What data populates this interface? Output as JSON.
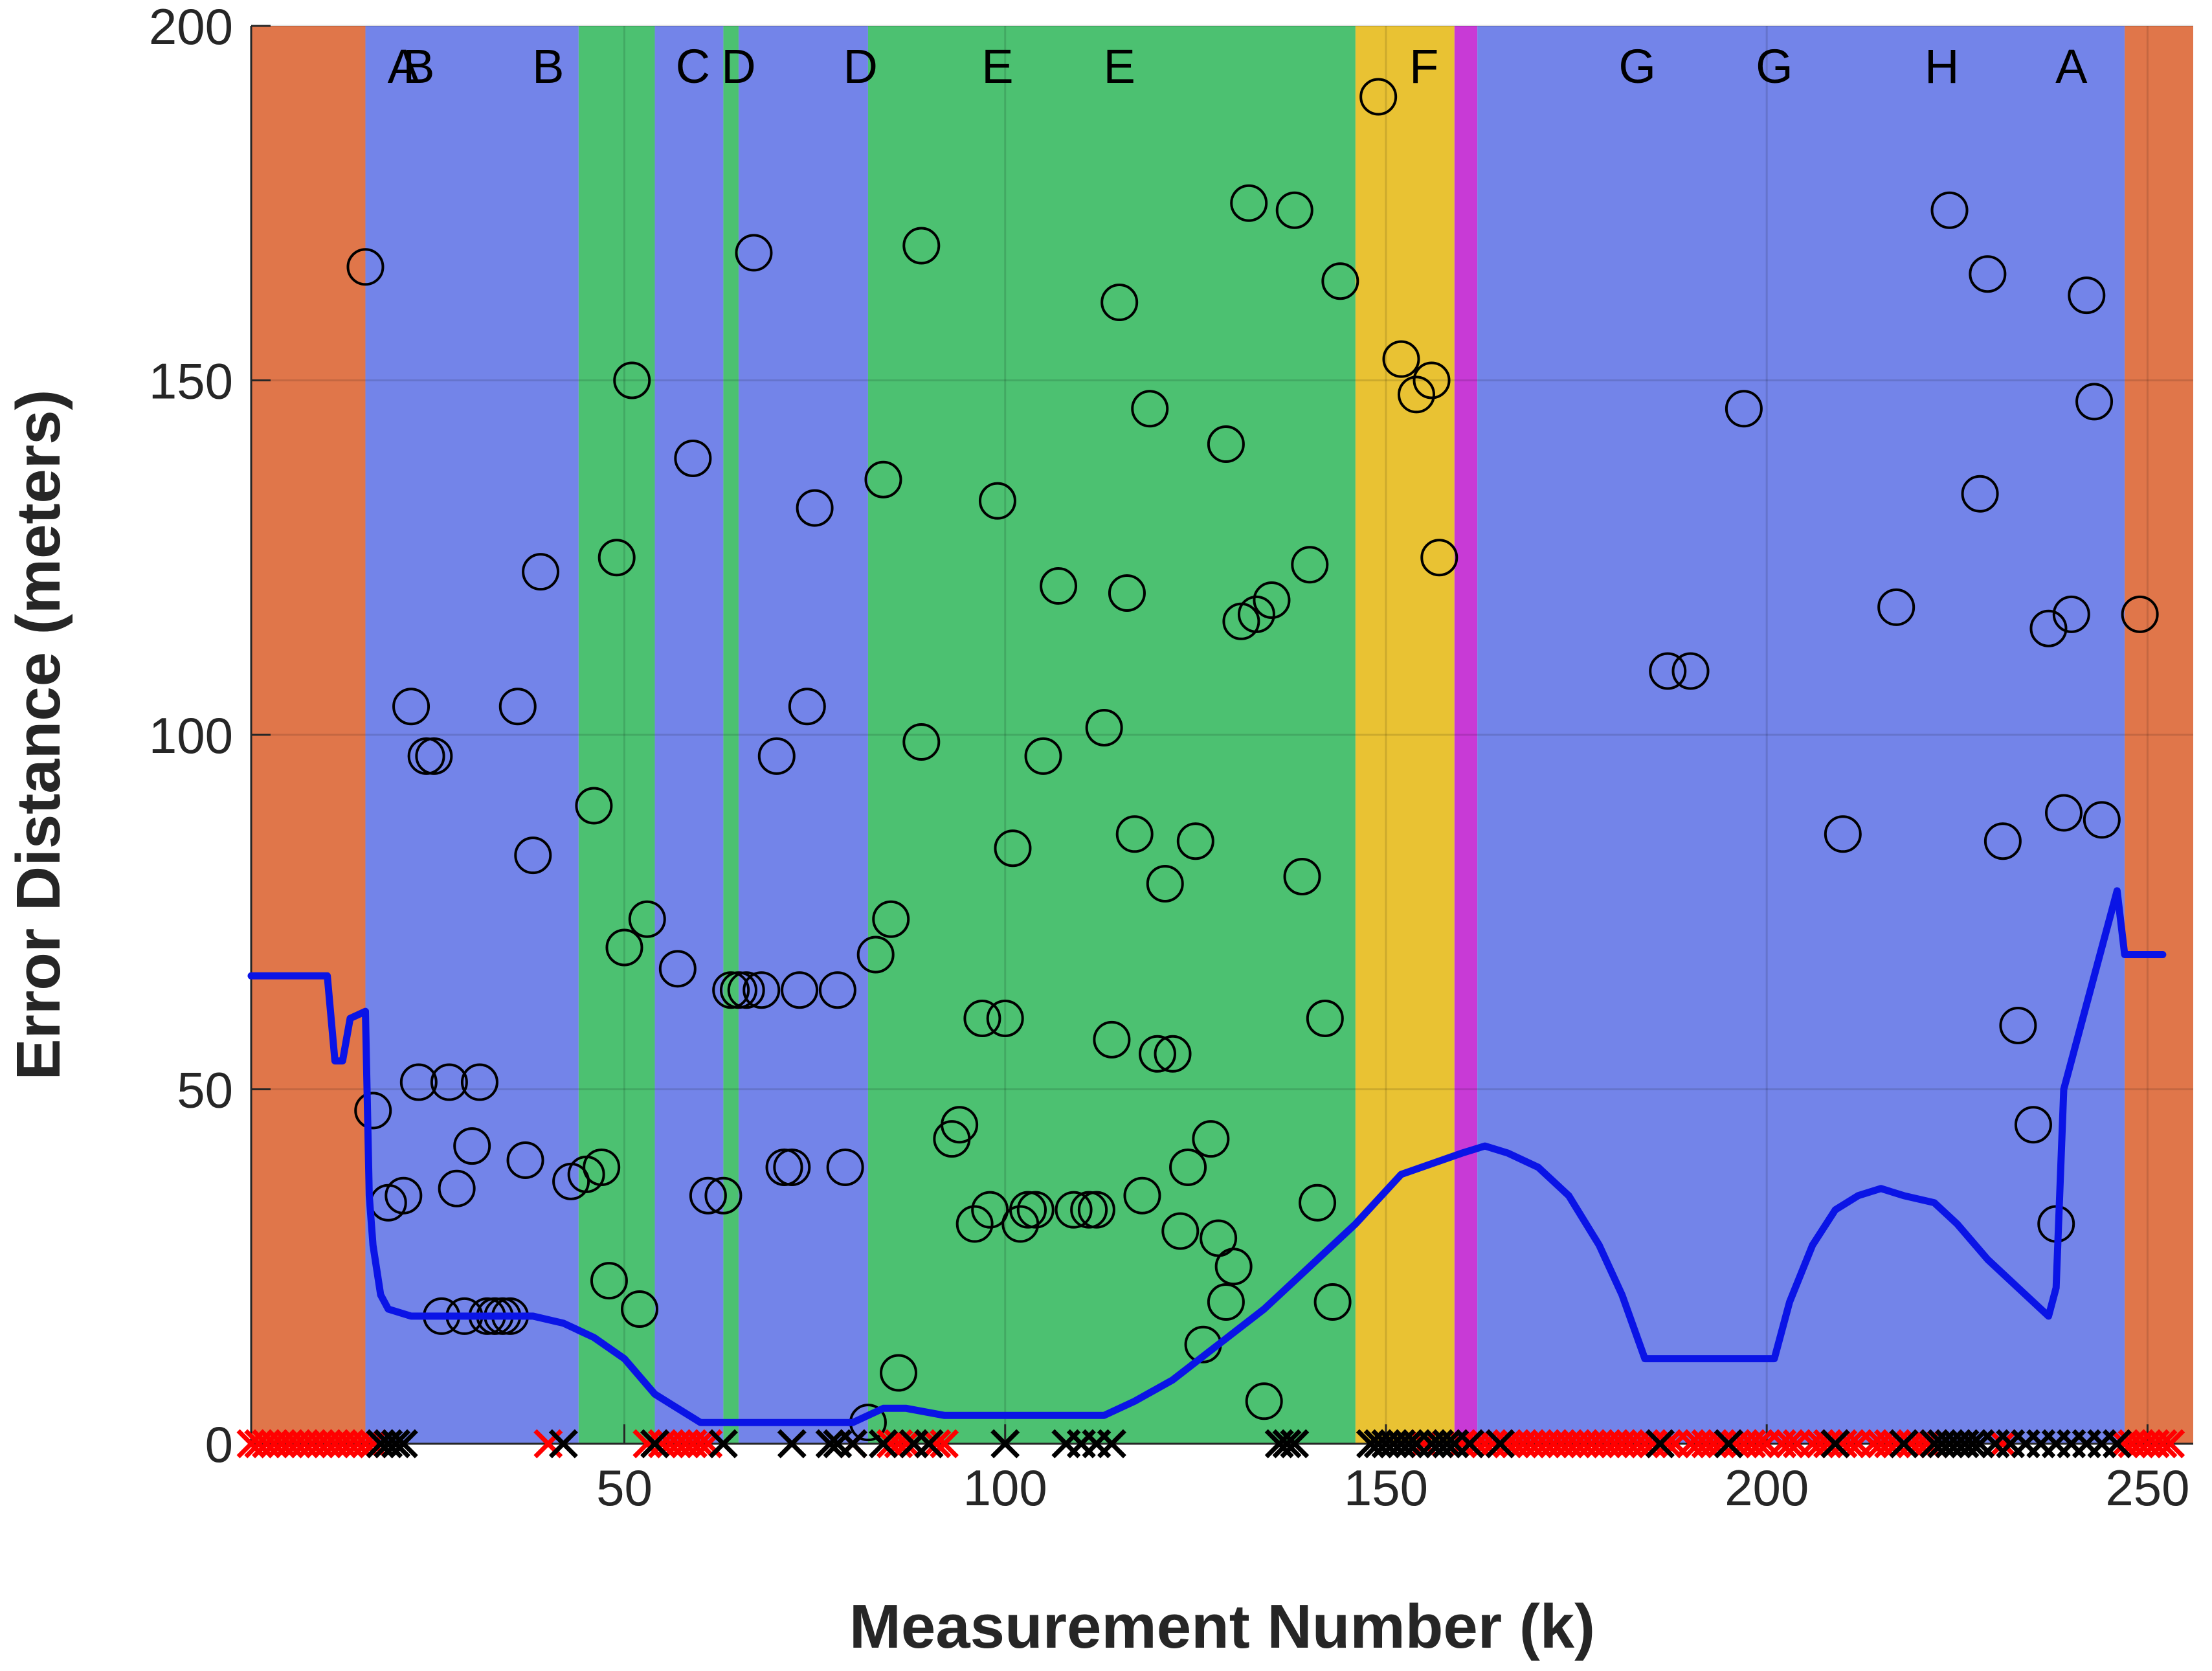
{
  "chart_data": {
    "type": "scatter",
    "xlabel": "Measurement Number (k)",
    "ylabel": "Error Distance (meters)",
    "xlim": [
      1,
      256
    ],
    "ylim": [
      0,
      200
    ],
    "xticks": [
      50,
      100,
      150,
      200,
      250
    ],
    "yticks": [
      0,
      50,
      100,
      150,
      200
    ],
    "grid": true,
    "background_regions": [
      {
        "from": 1,
        "to": 16,
        "color": "#e0764a"
      },
      {
        "from": 16,
        "to": 44,
        "color": "#7384e9"
      },
      {
        "from": 44,
        "to": 54,
        "color": "#4cc171"
      },
      {
        "from": 54,
        "to": 63,
        "color": "#7384e9"
      },
      {
        "from": 63,
        "to": 65,
        "color": "#4cc171"
      },
      {
        "from": 65,
        "to": 82,
        "color": "#7384e9"
      },
      {
        "from": 82,
        "to": 146,
        "color": "#4cc171"
      },
      {
        "from": 146,
        "to": 159,
        "color": "#e9c233"
      },
      {
        "from": 159,
        "to": 162,
        "color": "#c83ad6"
      },
      {
        "from": 162,
        "to": 247,
        "color": "#7384e9"
      },
      {
        "from": 247,
        "to": 256,
        "color": "#e0764a"
      }
    ],
    "segment_labels": [
      {
        "text": "A",
        "x": 21
      },
      {
        "text": "B",
        "x": 23
      },
      {
        "text": "B",
        "x": 40
      },
      {
        "text": "C",
        "x": 59
      },
      {
        "text": "D",
        "x": 65
      },
      {
        "text": "D",
        "x": 81
      },
      {
        "text": "E",
        "x": 99
      },
      {
        "text": "E",
        "x": 115
      },
      {
        "text": "F",
        "x": 155
      },
      {
        "text": "G",
        "x": 183
      },
      {
        "text": "G",
        "x": 201
      },
      {
        "text": "H",
        "x": 223
      },
      {
        "text": "A",
        "x": 240
      }
    ],
    "series": [
      {
        "marker": "circle",
        "color": "#000000",
        "points": [
          [
            16,
            166
          ],
          [
            17,
            47
          ],
          [
            19,
            34
          ],
          [
            21,
            35
          ],
          [
            22,
            104
          ],
          [
            23,
            51
          ],
          [
            24,
            97
          ],
          [
            25,
            97
          ],
          [
            26,
            18
          ],
          [
            27,
            51
          ],
          [
            28,
            36
          ],
          [
            29,
            18
          ],
          [
            30,
            42
          ],
          [
            31,
            51
          ],
          [
            32,
            18
          ],
          [
            33,
            18
          ],
          [
            34,
            18
          ],
          [
            35,
            18
          ],
          [
            36,
            104
          ],
          [
            37,
            40
          ],
          [
            38,
            83
          ],
          [
            39,
            123
          ],
          [
            43,
            37
          ],
          [
            45,
            38
          ],
          [
            46,
            90
          ],
          [
            47,
            39
          ],
          [
            48,
            23
          ],
          [
            49,
            125
          ],
          [
            50,
            70
          ],
          [
            51,
            150
          ],
          [
            52,
            19
          ],
          [
            53,
            74
          ],
          [
            57,
            67
          ],
          [
            59,
            139
          ],
          [
            61,
            35
          ],
          [
            63,
            35
          ],
          [
            64,
            64
          ],
          [
            65,
            64
          ],
          [
            66,
            64
          ],
          [
            67,
            168
          ],
          [
            68,
            64
          ],
          [
            70,
            97
          ],
          [
            71,
            39
          ],
          [
            72,
            39
          ],
          [
            73,
            64
          ],
          [
            74,
            104
          ],
          [
            75,
            132
          ],
          [
            78,
            64
          ],
          [
            79,
            39
          ],
          [
            82,
            3
          ],
          [
            83,
            69
          ],
          [
            84,
            136
          ],
          [
            85,
            74
          ],
          [
            86,
            10
          ],
          [
            89,
            169
          ],
          [
            89,
            99
          ],
          [
            93,
            43
          ],
          [
            94,
            45
          ],
          [
            96,
            31
          ],
          [
            97,
            60
          ],
          [
            98,
            33
          ],
          [
            99,
            133
          ],
          [
            100,
            60
          ],
          [
            101,
            84
          ],
          [
            102,
            31
          ],
          [
            103,
            33
          ],
          [
            104,
            33
          ],
          [
            105,
            97
          ],
          [
            107,
            121
          ],
          [
            109,
            33
          ],
          [
            111,
            33
          ],
          [
            112,
            33
          ],
          [
            113,
            101
          ],
          [
            114,
            57
          ],
          [
            115,
            161
          ],
          [
            116,
            120
          ],
          [
            117,
            86
          ],
          [
            118,
            35
          ],
          [
            119,
            146
          ],
          [
            120,
            55
          ],
          [
            121,
            79
          ],
          [
            122,
            55
          ],
          [
            123,
            30
          ],
          [
            124,
            39
          ],
          [
            125,
            85
          ],
          [
            126,
            14
          ],
          [
            127,
            43
          ],
          [
            128,
            29
          ],
          [
            129,
            141
          ],
          [
            129,
            20
          ],
          [
            130,
            25
          ],
          [
            131,
            116
          ],
          [
            132,
            175
          ],
          [
            133,
            117
          ],
          [
            134,
            6
          ],
          [
            135,
            119
          ],
          [
            138,
            174
          ],
          [
            139,
            80
          ],
          [
            140,
            124
          ],
          [
            141,
            34
          ],
          [
            142,
            60
          ],
          [
            143,
            20
          ],
          [
            144,
            164
          ],
          [
            149,
            190
          ],
          [
            152,
            153
          ],
          [
            154,
            148
          ],
          [
            156,
            150
          ],
          [
            157,
            125
          ],
          [
            187,
            109
          ],
          [
            190,
            109
          ],
          [
            197,
            146
          ],
          [
            210,
            86
          ],
          [
            217,
            118
          ],
          [
            224,
            174
          ],
          [
            228,
            134
          ],
          [
            229,
            165
          ],
          [
            231,
            85
          ],
          [
            233,
            59
          ],
          [
            235,
            45
          ],
          [
            237,
            115
          ],
          [
            238,
            31
          ],
          [
            239,
            89
          ],
          [
            240,
            117
          ],
          [
            242,
            162
          ],
          [
            243,
            147
          ],
          [
            244,
            88
          ],
          [
            249,
            117
          ]
        ]
      },
      {
        "marker": "line",
        "color": "#0a14e6",
        "points": [
          [
            1,
            66
          ],
          [
            11,
            66
          ],
          [
            12,
            54
          ],
          [
            13,
            54
          ],
          [
            14,
            60
          ],
          [
            16,
            61
          ],
          [
            16.5,
            35
          ],
          [
            17,
            28
          ],
          [
            18,
            21
          ],
          [
            19,
            19
          ],
          [
            22,
            18
          ],
          [
            38,
            18
          ],
          [
            42,
            17
          ],
          [
            46,
            15
          ],
          [
            50,
            12
          ],
          [
            54,
            7
          ],
          [
            57,
            5
          ],
          [
            60,
            3
          ],
          [
            80,
            3
          ],
          [
            84,
            5
          ],
          [
            87,
            5
          ],
          [
            92,
            4
          ],
          [
            113,
            4
          ],
          [
            117,
            6
          ],
          [
            122,
            9
          ],
          [
            128,
            14
          ],
          [
            134,
            19
          ],
          [
            140,
            25
          ],
          [
            146,
            31
          ],
          [
            152,
            38
          ],
          [
            160,
            41
          ],
          [
            163,
            42
          ],
          [
            166,
            41
          ],
          [
            170,
            39
          ],
          [
            174,
            35
          ],
          [
            178,
            28
          ],
          [
            181,
            21
          ],
          [
            184,
            12
          ],
          [
            201,
            12
          ],
          [
            203,
            20
          ],
          [
            206,
            28
          ],
          [
            209,
            33
          ],
          [
            212,
            35
          ],
          [
            215,
            36
          ],
          [
            218,
            35
          ],
          [
            222,
            34
          ],
          [
            225,
            31
          ],
          [
            229,
            26
          ],
          [
            233,
            22
          ],
          [
            236,
            19
          ],
          [
            237,
            18
          ],
          [
            238,
            22
          ],
          [
            239,
            50
          ],
          [
            242,
            62
          ],
          [
            246,
            78
          ],
          [
            247,
            69
          ],
          [
            250,
            69
          ],
          [
            252,
            69
          ]
        ]
      },
      {
        "marker": "x",
        "color": "#ff0000",
        "x": [
          1,
          2,
          3,
          4,
          5,
          6,
          7,
          8,
          9,
          10,
          11,
          12,
          13,
          14,
          15,
          16,
          17,
          40,
          53,
          55,
          56,
          57,
          58,
          59,
          60,
          61,
          80,
          85,
          86,
          87,
          88,
          90,
          91,
          92,
          155,
          160,
          162,
          163,
          164,
          165,
          166,
          167,
          168,
          169,
          170,
          171,
          172,
          173,
          174,
          175,
          176,
          177,
          178,
          179,
          180,
          181,
          182,
          183,
          184,
          185,
          186,
          187,
          188,
          190,
          191,
          192,
          193,
          194,
          195,
          196,
          197,
          198,
          199,
          200,
          202,
          203,
          204,
          206,
          207,
          208,
          209,
          210,
          211,
          212,
          214,
          215,
          216,
          217,
          219,
          220,
          221,
          222,
          231,
          247,
          248,
          249,
          250,
          251,
          252,
          253
        ]
      },
      {
        "marker": "x",
        "color": "#000000",
        "x": [
          18,
          19,
          20,
          21,
          42,
          54,
          63,
          72,
          77,
          78,
          80,
          84,
          88,
          90,
          100,
          108,
          110,
          112,
          114,
          136,
          137,
          138,
          148,
          149,
          150,
          151,
          152,
          153,
          154,
          156,
          157,
          158,
          159,
          161,
          165,
          186,
          195,
          209,
          218,
          222,
          223,
          224,
          225,
          226,
          227,
          228,
          230,
          232,
          234,
          236,
          238,
          240,
          242,
          244,
          246
        ]
      }
    ]
  }
}
